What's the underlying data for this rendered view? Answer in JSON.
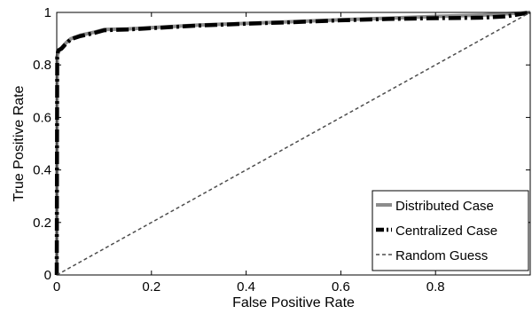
{
  "chart_data": {
    "type": "line",
    "title": "",
    "xlabel": "False Positive Rate",
    "ylabel": "True Positive Rate",
    "xlim": [
      0,
      1
    ],
    "ylim": [
      0,
      1
    ],
    "xticks": [
      0,
      0.2,
      0.4,
      0.6,
      0.8
    ],
    "xtick_labels": [
      "0",
      "0.2",
      "0.4",
      "0.6",
      "0.8"
    ],
    "yticks": [
      0,
      0.2,
      0.4,
      0.6,
      0.8,
      1
    ],
    "ytick_labels": [
      "0",
      "0.2",
      "0.4",
      "0.6",
      "0.8",
      "1"
    ],
    "grid": false,
    "legend_position": "bottom-right",
    "series": [
      {
        "name": "Distributed Case",
        "color": "#8c8c8c",
        "style": "solid",
        "x": [
          0,
          0.001,
          0.003,
          0.01,
          0.02,
          0.03,
          0.05,
          0.08,
          0.1,
          0.15,
          0.2,
          0.3,
          0.4,
          0.5,
          0.6,
          0.7,
          0.8,
          0.9,
          0.95,
          1.0
        ],
        "y": [
          0,
          0.83,
          0.855,
          0.865,
          0.885,
          0.9,
          0.913,
          0.925,
          0.935,
          0.937,
          0.942,
          0.952,
          0.958,
          0.965,
          0.972,
          0.978,
          0.985,
          0.99,
          0.995,
          1.0
        ]
      },
      {
        "name": "Centralized Case",
        "color": "#000000",
        "style": "dashdot",
        "x": [
          0,
          0.001,
          0.003,
          0.01,
          0.02,
          0.03,
          0.05,
          0.08,
          0.1,
          0.15,
          0.2,
          0.3,
          0.4,
          0.5,
          0.6,
          0.7,
          0.8,
          0.9,
          0.95,
          1.0
        ],
        "y": [
          0,
          0.83,
          0.855,
          0.862,
          0.882,
          0.898,
          0.91,
          0.922,
          0.932,
          0.935,
          0.94,
          0.95,
          0.957,
          0.963,
          0.97,
          0.975,
          0.978,
          0.98,
          0.985,
          1.0
        ]
      },
      {
        "name": "Random Guess",
        "color": "#4d4d4d",
        "style": "dashed",
        "x": [
          0,
          1
        ],
        "y": [
          0,
          1
        ]
      }
    ]
  }
}
